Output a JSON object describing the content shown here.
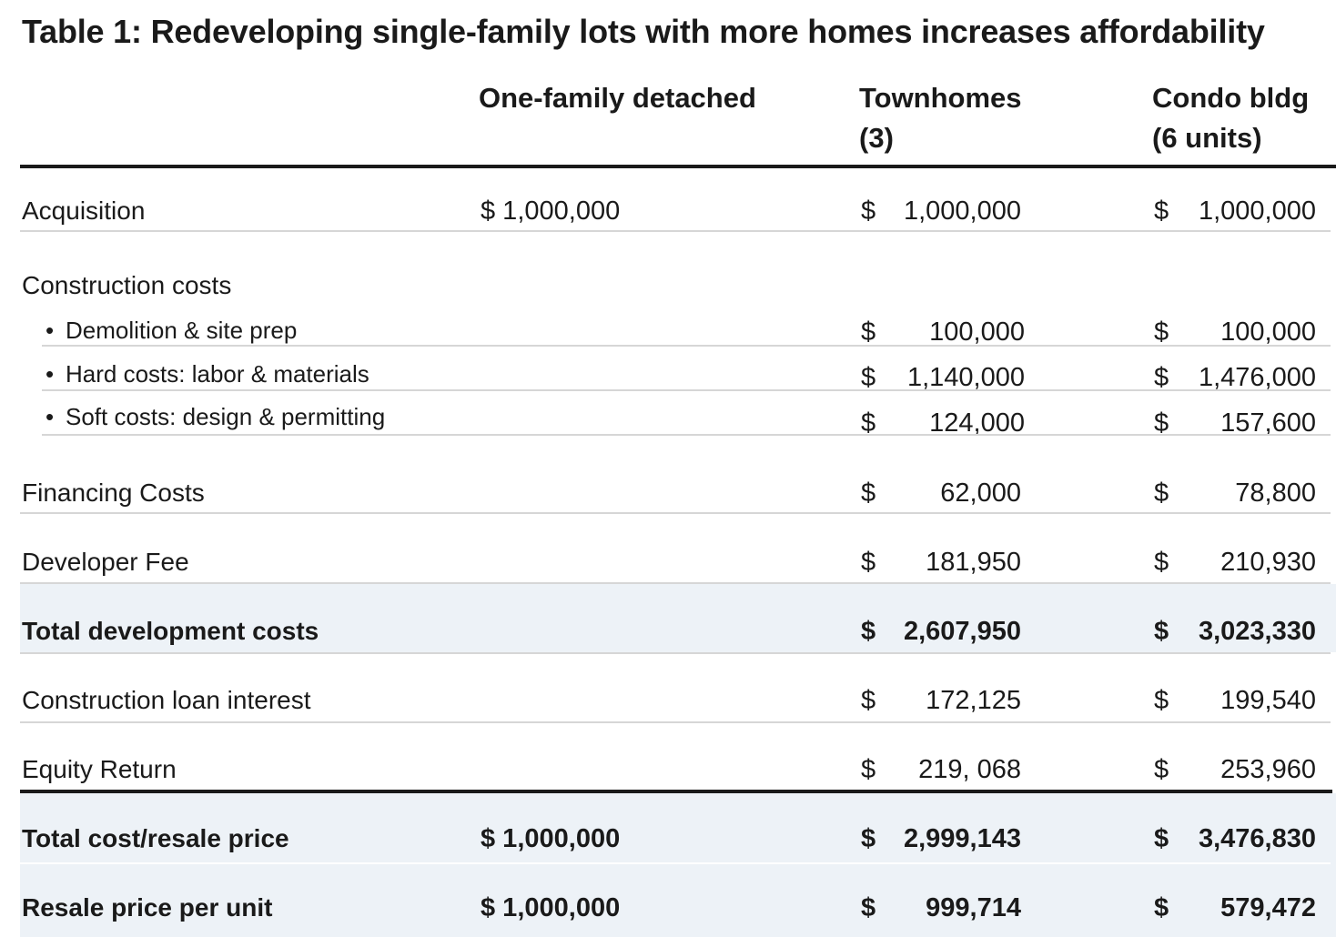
{
  "title": "Table 1: Redeveloping single-family lots with more homes increases affordability",
  "columns": {
    "c1": "One-family detached",
    "c2_line1": "Townhomes",
    "c2_line2": "(3)",
    "c3_line1": "Condo bldg",
    "c3_line2": "(6 units)"
  },
  "rows": {
    "acquisition": {
      "label": "Acquisition",
      "c1": "$ 1,000,000",
      "c2_sym": "$",
      "c2": "1,000,000",
      "c3_sym": "$",
      "c3": "1,000,000"
    },
    "construction": {
      "label": "Construction costs"
    },
    "demolition": {
      "label": "Demolition & site prep",
      "c2_sym": "$",
      "c2": "100,000",
      "c3_sym": "$",
      "c3": "100,000"
    },
    "hard": {
      "label": "Hard costs: labor & materials",
      "c2_sym": "$",
      "c2": "1,140,000",
      "c3_sym": "$",
      "c3": "1,476,000"
    },
    "soft": {
      "label": "Soft costs: design & permitting",
      "c2_sym": "$",
      "c2": "124,000",
      "c3_sym": "$",
      "c3": "157,600"
    },
    "financing": {
      "label": "Financing Costs",
      "c2_sym": "$",
      "c2": "62,000",
      "c3_sym": "$",
      "c3": "78,800"
    },
    "devfee": {
      "label": "Developer Fee",
      "c2_sym": "$",
      "c2": "181,950",
      "c3_sym": "$",
      "c3": "210,930"
    },
    "totaldev": {
      "label": "Total development costs",
      "c2_sym": "$",
      "c2": "2,607,950",
      "c3_sym": "$",
      "c3": "3,023,330"
    },
    "loan": {
      "label": "Construction loan interest",
      "c2_sym": "$",
      "c2": "172,125",
      "c3_sym": "$",
      "c3": "199,540"
    },
    "equity": {
      "label": "Equity Return",
      "c2_sym": "$",
      "c2": "219, 068",
      "c3_sym": "$",
      "c3": "253,960"
    },
    "totalcost": {
      "label": "Total cost/resale price",
      "c1": "$ 1,000,000",
      "c2_sym": "$",
      "c2": "2,999,143",
      "c3_sym": "$",
      "c3": "3,476,830"
    },
    "perunit": {
      "label": "Resale price per unit",
      "c1": "$ 1,000,000",
      "c2_sym": "$",
      "c2": "999,714",
      "c3_sym": "$",
      "c3": "579,472"
    }
  },
  "bullet_glyph": "•"
}
